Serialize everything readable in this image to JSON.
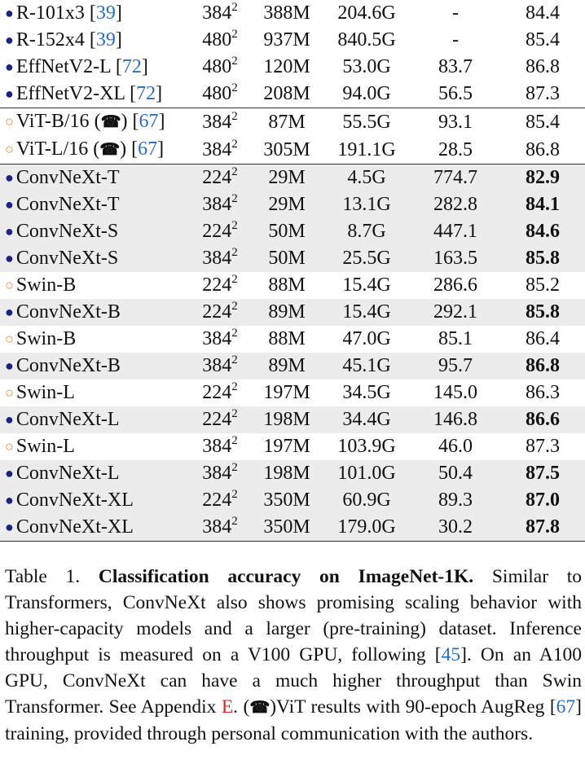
{
  "table": {
    "rows": [
      {
        "marker": "filled",
        "model": "R-101x3",
        "cite": "39",
        "res_base": "384",
        "res_exp": "2",
        "params": "388M",
        "flops": "204.6G",
        "throughput": "-",
        "acc": "84.4",
        "bold": false,
        "shaded": false,
        "group": 1
      },
      {
        "marker": "filled",
        "model": "R-152x4",
        "cite": "39",
        "res_base": "480",
        "res_exp": "2",
        "params": "937M",
        "flops": "840.5G",
        "throughput": "-",
        "acc": "85.4",
        "bold": false,
        "shaded": false,
        "group": 1
      },
      {
        "marker": "filled",
        "model": "EffNetV2-L",
        "cite": "72",
        "res_base": "480",
        "res_exp": "2",
        "params": "120M",
        "flops": "53.0G",
        "throughput": "83.7",
        "acc": "86.8",
        "bold": false,
        "shaded": false,
        "group": 1
      },
      {
        "marker": "filled",
        "model": "EffNetV2-XL",
        "cite": "72",
        "res_base": "480",
        "res_exp": "2",
        "params": "208M",
        "flops": "94.0G",
        "throughput": "56.5",
        "acc": "87.3",
        "bold": false,
        "shaded": false,
        "group": 1
      },
      {
        "marker": "open",
        "model": "ViT-B/16",
        "phone": "☎",
        "cite": "67",
        "res_base": "384",
        "res_exp": "2",
        "params": "87M",
        "flops": "55.5G",
        "throughput": "93.1",
        "acc": "85.4",
        "bold": false,
        "shaded": false,
        "group": 2
      },
      {
        "marker": "open",
        "model": "ViT-L/16",
        "phone": "☎",
        "cite": "67",
        "res_base": "384",
        "res_exp": "2",
        "params": "305M",
        "flops": "191.1G",
        "throughput": "28.5",
        "acc": "86.8",
        "bold": false,
        "shaded": false,
        "group": 2
      },
      {
        "marker": "filled",
        "model": "ConvNeXt-T",
        "res_base": "224",
        "res_exp": "2",
        "params": "29M",
        "flops": "4.5G",
        "throughput": "774.7",
        "acc": "82.9",
        "bold": true,
        "shaded": true,
        "group": 3
      },
      {
        "marker": "filled",
        "model": "ConvNeXt-T",
        "res_base": "384",
        "res_exp": "2",
        "params": "29M",
        "flops": "13.1G",
        "throughput": "282.8",
        "acc": "84.1",
        "bold": true,
        "shaded": true,
        "group": 3
      },
      {
        "marker": "filled",
        "model": "ConvNeXt-S",
        "res_base": "224",
        "res_exp": "2",
        "params": "50M",
        "flops": "8.7G",
        "throughput": "447.1",
        "acc": "84.6",
        "bold": true,
        "shaded": true,
        "group": 3
      },
      {
        "marker": "filled",
        "model": "ConvNeXt-S",
        "res_base": "384",
        "res_exp": "2",
        "params": "50M",
        "flops": "25.5G",
        "throughput": "163.5",
        "acc": "85.8",
        "bold": true,
        "shaded": true,
        "group": 3
      },
      {
        "marker": "open",
        "model": "Swin-B",
        "res_base": "224",
        "res_exp": "2",
        "params": "88M",
        "flops": "15.4G",
        "throughput": "286.6",
        "acc": "85.2",
        "bold": false,
        "shaded": false,
        "group": 3
      },
      {
        "marker": "filled",
        "model": "ConvNeXt-B",
        "res_base": "224",
        "res_exp": "2",
        "params": "89M",
        "flops": "15.4G",
        "throughput": "292.1",
        "acc": "85.8",
        "bold": true,
        "shaded": true,
        "group": 3
      },
      {
        "marker": "open",
        "model": "Swin-B",
        "res_base": "384",
        "res_exp": "2",
        "params": "88M",
        "flops": "47.0G",
        "throughput": "85.1",
        "acc": "86.4",
        "bold": false,
        "shaded": false,
        "group": 3
      },
      {
        "marker": "filled",
        "model": "ConvNeXt-B",
        "res_base": "384",
        "res_exp": "2",
        "params": "89M",
        "flops": "45.1G",
        "throughput": "95.7",
        "acc": "86.8",
        "bold": true,
        "shaded": true,
        "group": 3
      },
      {
        "marker": "open",
        "model": "Swin-L",
        "res_base": "224",
        "res_exp": "2",
        "params": "197M",
        "flops": "34.5G",
        "throughput": "145.0",
        "acc": "86.3",
        "bold": false,
        "shaded": false,
        "group": 3
      },
      {
        "marker": "filled",
        "model": "ConvNeXt-L",
        "res_base": "224",
        "res_exp": "2",
        "params": "198M",
        "flops": "34.4G",
        "throughput": "146.8",
        "acc": "86.6",
        "bold": true,
        "shaded": true,
        "group": 3
      },
      {
        "marker": "open",
        "model": "Swin-L",
        "res_base": "384",
        "res_exp": "2",
        "params": "197M",
        "flops": "103.9G",
        "throughput": "46.0",
        "acc": "87.3",
        "bold": false,
        "shaded": false,
        "group": 3
      },
      {
        "marker": "filled",
        "model": "ConvNeXt-L",
        "res_base": "384",
        "res_exp": "2",
        "params": "198M",
        "flops": "101.0G",
        "throughput": "50.4",
        "acc": "87.5",
        "bold": true,
        "shaded": true,
        "group": 3
      },
      {
        "marker": "filled",
        "model": "ConvNeXt-XL",
        "res_base": "224",
        "res_exp": "2",
        "params": "350M",
        "flops": "60.9G",
        "throughput": "89.3",
        "acc": "87.0",
        "bold": true,
        "shaded": true,
        "group": 3
      },
      {
        "marker": "filled",
        "model": "ConvNeXt-XL",
        "res_base": "384",
        "res_exp": "2",
        "params": "350M",
        "flops": "179.0G",
        "throughput": "30.2",
        "acc": "87.8",
        "bold": true,
        "shaded": true,
        "group": 3
      }
    ]
  },
  "caption": {
    "label": "Table 1.",
    "title": "Classification accuracy on ImageNet-1K.",
    "text_1": "Similar to Transformers, ConvNeXt also shows promising scaling behavior with higher-capacity models and a larger (pre-training) dataset. Inference throughput is measured on a V100 GPU, following [",
    "cite_1": "45",
    "text_2": "]. On an A100 GPU, ConvNeXt can have a much higher throughput than Swin Transformer. See Appendix ",
    "appendix_ref": "E",
    "text_3": ". (",
    "phone": "☎",
    "text_4": ")ViT results with 90-epoch AugReg [",
    "cite_2": "67",
    "text_5": "] training, provided through personal communication with the authors."
  },
  "colors": {
    "filled_marker": "#1a237e",
    "open_marker": "#e0883a",
    "citation": "#2a6cc4",
    "appendix_ref": "#d42a2a",
    "row_shade": "#ececec"
  }
}
